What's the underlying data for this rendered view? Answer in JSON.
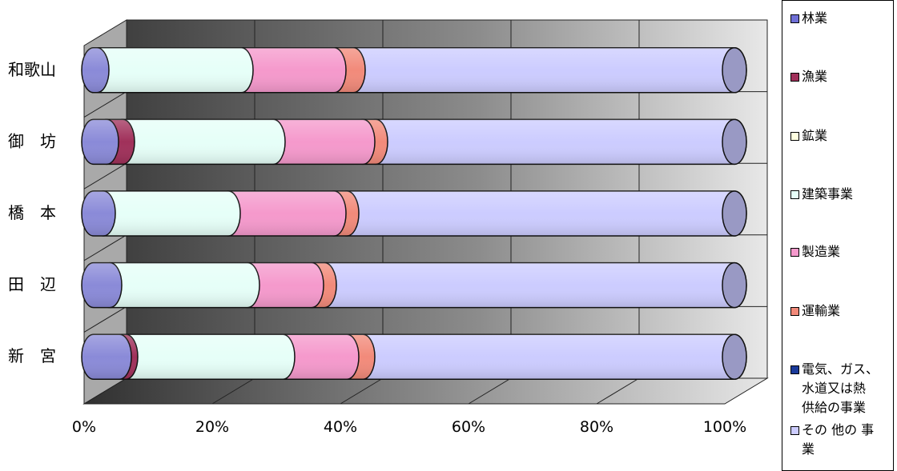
{
  "chart_data": {
    "type": "bar",
    "orientation": "horizontal",
    "stacked": "100%",
    "style": "3d-cylinder",
    "categories": [
      "和歌山",
      "御　坊",
      "橋　本",
      "田　辺",
      "新　宮"
    ],
    "x_ticks": [
      "0%",
      "20%",
      "40%",
      "60%",
      "80%",
      "100%"
    ],
    "xlim": [
      0,
      100
    ],
    "grid": true,
    "legend_position": "right",
    "series": [
      {
        "name": "林業",
        "color": "#8a8ad8",
        "values": [
          0.5,
          2,
          1.5,
          2.5,
          4
        ]
      },
      {
        "name": "漁業",
        "color": "#a0305a",
        "values": [
          0,
          2.5,
          0,
          0,
          1
        ]
      },
      {
        "name": "鉱業",
        "color": "#ffffe0",
        "values": [
          0,
          0,
          0,
          0,
          0
        ]
      },
      {
        "name": "建築事業",
        "color": "#e6fff8",
        "values": [
          22.5,
          23.5,
          19.5,
          21.5,
          24.5
        ]
      },
      {
        "name": "製造業",
        "color": "#f599cc",
        "values": [
          14.5,
          14,
          16.5,
          10,
          10
        ]
      },
      {
        "name": "運輸業",
        "color": "#f28a7a",
        "values": [
          3,
          2,
          2,
          2,
          2.5
        ]
      },
      {
        "name": "電気、ガス、水道又は熱供給の事業",
        "color": "#000080",
        "values": [
          0,
          0,
          0,
          0,
          0
        ]
      },
      {
        "name": "その他の事業",
        "color": "#ccccff",
        "values": [
          59.5,
          56,
          60.5,
          64,
          58
        ]
      }
    ]
  },
  "legend": {
    "items": [
      {
        "label": "林業",
        "color": "#6f6fd6"
      },
      {
        "label": "漁業",
        "color": "#a0305a"
      },
      {
        "label": "鉱業",
        "color": "#ffffe0"
      },
      {
        "label": "建築事業",
        "color": "#e6fff8"
      },
      {
        "label": "製造業",
        "color": "#f599cc"
      },
      {
        "label": "運輸業",
        "color": "#f28a7a"
      },
      {
        "label": "電気、ガス、\n水道又は熱\n供給の事業",
        "color": "#1a3a9a"
      },
      {
        "label": "その 他の 事\n業",
        "color": "#ccccff"
      }
    ]
  }
}
